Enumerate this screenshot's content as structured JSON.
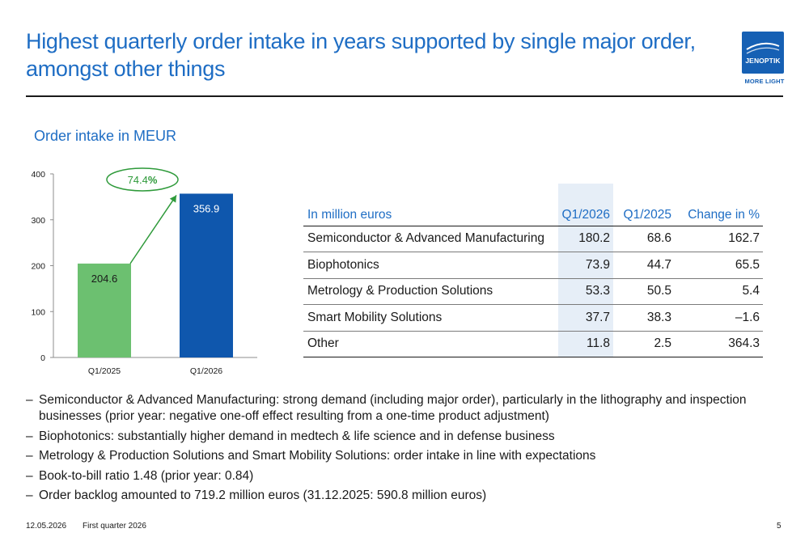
{
  "header": {
    "title": "Highest quarterly order intake in years supported by single major order, amongst other things",
    "logo_word": "JENOPTIK",
    "logo_tagline": "MORE LIGHT"
  },
  "subtitle": "Order intake in MEUR",
  "chart_data": {
    "type": "bar",
    "categories": [
      "Q1/2025",
      "Q1/2026"
    ],
    "values": [
      204.6,
      356.9
    ],
    "value_labels": [
      "204.6",
      "356.9"
    ],
    "bar_colors": [
      "#6cc070",
      "#0f57ad"
    ],
    "ylim": [
      0,
      400
    ],
    "yticks": [
      "0",
      "100",
      "200",
      "300",
      "400"
    ],
    "annotation": {
      "prefix": "74.4",
      "suffix": "%",
      "color": "#2e9a3a"
    },
    "grid": false
  },
  "table": {
    "headers": [
      "In million euros",
      "Q1/2026",
      "Q1/2025",
      "Change in %"
    ],
    "rows": [
      [
        "Semiconductor & Advanced Manufacturing",
        "180.2",
        "68.6",
        "162.7"
      ],
      [
        "Biophotonics",
        "73.9",
        "44.7",
        "65.5"
      ],
      [
        "Metrology & Production Solutions",
        "53.3",
        "50.5",
        "5.4"
      ],
      [
        "Smart Mobility Solutions",
        "37.7",
        "38.3",
        "–1.6"
      ],
      [
        "Other",
        "11.8",
        "2.5",
        "364.3"
      ]
    ]
  },
  "bullets": [
    "Semiconductor & Advanced Manufacturing: strong demand (including major order), particularly in the lithography and inspection businesses (prior year: negative one-off effect resulting from a one-time product adjustment)",
    "Biophotonics: substantially higher demand in medtech & life science and in defense business",
    "Metrology & Production Solutions and Smart Mobility Solutions: order intake in line with expectations",
    "Book-to-bill ratio 1.48 (prior year: 0.84)",
    "Order backlog amounted to 719.2 million euros (31.12.2025: 590.8 million euros)"
  ],
  "footer": {
    "date": "12.05.2026",
    "label": "First quarter 2026",
    "page": "5"
  },
  "colors": {
    "accent": "#1e6dc4",
    "brand": "#1660b4",
    "highlight_column": "#e6eef7"
  }
}
